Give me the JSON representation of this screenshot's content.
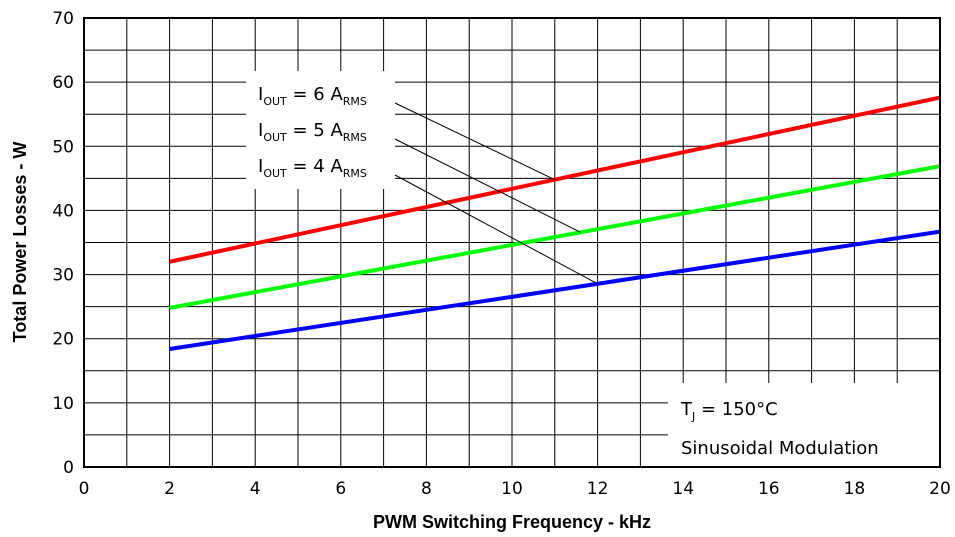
{
  "chart_data": {
    "type": "line",
    "title": "",
    "xlabel": "PWM Switching Frequency - kHz",
    "ylabel": "Total Power Losses - W",
    "xlim": [
      0,
      20
    ],
    "ylim": [
      0,
      70
    ],
    "x_ticks": [
      0,
      2,
      4,
      6,
      8,
      10,
      12,
      14,
      16,
      18,
      20
    ],
    "y_ticks": [
      0,
      10,
      20,
      30,
      40,
      50,
      60,
      70
    ],
    "grid": true,
    "series": [
      {
        "name": "I_OUT = 6 A_RMS",
        "color": "#ff0000",
        "x": [
          2,
          20
        ],
        "y": [
          32.0,
          57.6
        ]
      },
      {
        "name": "I_OUT = 5 A_RMS",
        "color": "#00ff00",
        "x": [
          2,
          20
        ],
        "y": [
          24.8,
          46.9
        ]
      },
      {
        "name": "I_OUT = 4 A_RMS",
        "color": "#0000ff",
        "x": [
          2,
          20
        ],
        "y": [
          18.4,
          36.7
        ]
      }
    ],
    "annotations": {
      "legend_labels": [
        {
          "main": "I",
          "sub": "OUT",
          "mid": " = 6 A",
          "sub2": "RMS"
        },
        {
          "main": "I",
          "sub": "OUT",
          "mid": " = 5 A",
          "sub2": "RMS"
        },
        {
          "main": "I",
          "sub": "OUT",
          "mid": " = 4 A",
          "sub2": "RMS"
        }
      ],
      "conditions": {
        "tj_main": "T",
        "tj_sub": "J",
        "tj_rest": " = 150°C",
        "modulation": "Sinusoidal Modulation"
      }
    }
  }
}
